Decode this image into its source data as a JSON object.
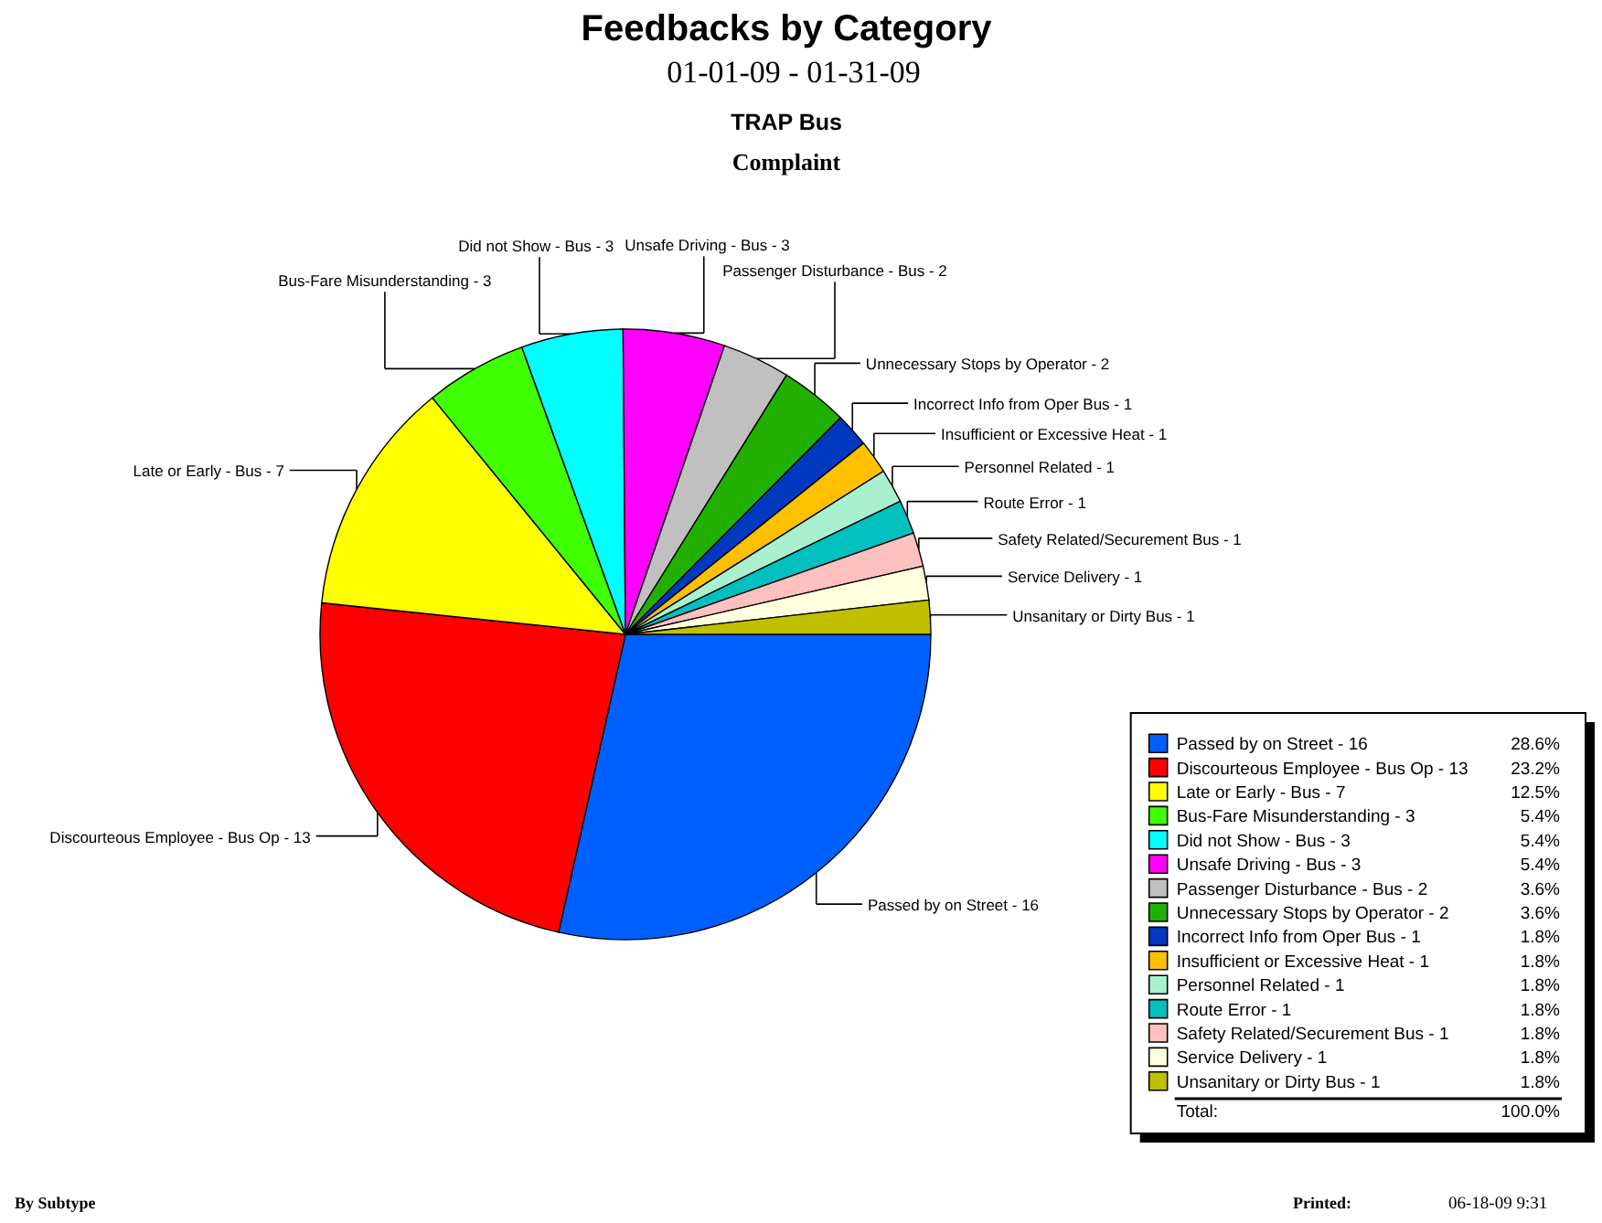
{
  "chart_data": {
    "type": "pie",
    "title": "Feedbacks by Category",
    "subtitle": "01-01-09 - 01-31-09",
    "categories": [
      "Passed by on Street - 16",
      "Discourteous Employee - Bus Op - 13",
      "Late or Early - Bus - 7",
      "Bus-Fare Misunderstanding - 3",
      "Did not Show - Bus - 3",
      "Unsafe Driving - Bus - 3",
      "Passenger Disturbance - Bus - 2",
      "Unnecessary Stops by Operator - 2",
      "Incorrect Info from Oper Bus - 1",
      "Insufficient or Excessive Heat - 1",
      "Personnel Related - 1",
      "Route Error - 1",
      "Safety Related/Securement  Bus - 1",
      "Service Delivery - 1",
      "Unsanitary or Dirty Bus - 1"
    ],
    "values": [
      28.6,
      23.2,
      12.5,
      5.4,
      5.4,
      5.4,
      3.6,
      3.6,
      1.8,
      1.8,
      1.8,
      1.8,
      1.8,
      1.8,
      1.8
    ],
    "colors": [
      "#0060ff",
      "#ff0000",
      "#ffff00",
      "#40ff00",
      "#00ffff",
      "#ff00ff",
      "#c0c0c0",
      "#22b000",
      "#0038c0",
      "#ffc000",
      "#a8f0d0",
      "#00c0c0",
      "#ffc0c0",
      "#ffffe0",
      "#c0c000"
    ],
    "value_labels": [
      "28.6%",
      "23.2%",
      "12.5%",
      "5.4%",
      "5.4%",
      "5.4%",
      "3.6%",
      "3.6%",
      "1.8%",
      "1.8%",
      "1.8%",
      "1.8%",
      "1.8%",
      "1.8%",
      "1.8%"
    ],
    "legend": "bottom right",
    "annotations": [
      "TRAP Bus",
      "Complaint",
      "Total:",
      "100.0%",
      "By Subtype",
      "Printed:",
      "06-18-09 9:31"
    ]
  }
}
